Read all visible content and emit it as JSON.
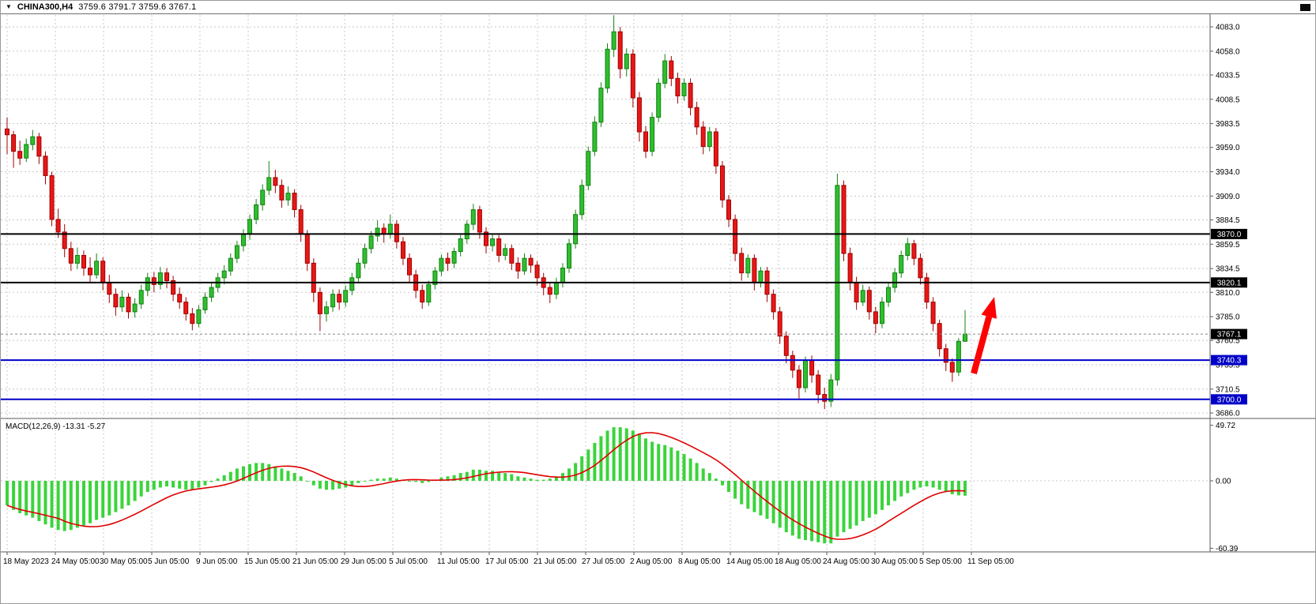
{
  "header": {
    "symbol_period": "CHINA300,H4",
    "ohlc": "3759.6 3791.7 3759.6 3767.1"
  },
  "chart_data": {
    "type": "candlestick",
    "symbol": "CHINA300",
    "timeframe": "H4",
    "title": "CHINA300,H4 3759.6 3791.7 3759.6 3767.1",
    "last_bar": {
      "open": 3759.6,
      "high": 3791.7,
      "low": 3759.6,
      "close": 3767.1
    },
    "ylim": [
      3686.0,
      4083.0
    ],
    "y_ticks": [
      "4083.0",
      "4058.0",
      "4033.5",
      "4008.5",
      "3983.5",
      "3959.0",
      "3934.0",
      "3909.0",
      "3884.5",
      "3859.5",
      "3834.5",
      "3810.0",
      "3785.0",
      "3760.5",
      "3735.5",
      "3710.5",
      "3686.0"
    ],
    "x_labels": [
      "18 May 2023",
      "24 May 05:00",
      "30 May 05:00",
      "5 Jun 05:00",
      "9 Jun 05:00",
      "15 Jun 05:00",
      "21 Jun 05:00",
      "29 Jun 05:00",
      "5 Jul 05:00",
      "11 Jul 05:00",
      "17 Jul 05:00",
      "21 Jul 05:00",
      "27 Jul 05:00",
      "2 Aug 05:00",
      "8 Aug 05:00",
      "14 Aug 05:00",
      "18 Aug 05:00",
      "24 Aug 05:00",
      "30 Aug 05:00",
      "5 Sep 05:00",
      "11 Sep 05:00"
    ],
    "levels": [
      {
        "price": 3870.0,
        "label": "3870.0",
        "color": "#000000",
        "width": 2
      },
      {
        "price": 3820.1,
        "label": "3820.1",
        "color": "#000000",
        "width": 2
      },
      {
        "price": 3740.3,
        "label": "3740.3",
        "color": "#0000C8",
        "width": 2
      },
      {
        "price": 3700.0,
        "label": "3700.0",
        "color": "#0000C8",
        "width": 2
      }
    ],
    "current_price": {
      "price": 3767.1,
      "label": "3767.1"
    },
    "candles": [
      [
        3978,
        3990,
        3952,
        3972
      ],
      [
        3972,
        3976,
        3938,
        3955
      ],
      [
        3955,
        3966,
        3941,
        3948
      ],
      [
        3948,
        3968,
        3944,
        3962
      ],
      [
        3962,
        3977,
        3956,
        3970
      ],
      [
        3970,
        3974,
        3942,
        3950
      ],
      [
        3950,
        3955,
        3921,
        3930
      ],
      [
        3930,
        3934,
        3878,
        3885
      ],
      [
        3885,
        3896,
        3866,
        3872
      ],
      [
        3872,
        3880,
        3846,
        3855
      ],
      [
        3855,
        3862,
        3832,
        3840
      ],
      [
        3840,
        3856,
        3834,
        3848
      ],
      [
        3848,
        3853,
        3827,
        3835
      ],
      [
        3835,
        3846,
        3820,
        3828
      ],
      [
        3828,
        3850,
        3824,
        3842
      ],
      [
        3842,
        3846,
        3812,
        3820
      ],
      [
        3820,
        3828,
        3799,
        3808
      ],
      [
        3808,
        3814,
        3786,
        3795
      ],
      [
        3795,
        3812,
        3790,
        3805
      ],
      [
        3805,
        3809,
        3783,
        3790
      ],
      [
        3790,
        3804,
        3784,
        3798
      ],
      [
        3798,
        3818,
        3793,
        3812
      ],
      [
        3812,
        3830,
        3806,
        3825
      ],
      [
        3825,
        3831,
        3810,
        3818
      ],
      [
        3818,
        3836,
        3813,
        3830
      ],
      [
        3830,
        3835,
        3814,
        3822
      ],
      [
        3822,
        3827,
        3801,
        3808
      ],
      [
        3808,
        3815,
        3793,
        3800
      ],
      [
        3800,
        3805,
        3781,
        3788
      ],
      [
        3788,
        3794,
        3771,
        3778
      ],
      [
        3778,
        3797,
        3774,
        3792
      ],
      [
        3792,
        3810,
        3788,
        3805
      ],
      [
        3805,
        3820,
        3800,
        3815
      ],
      [
        3815,
        3830,
        3810,
        3825
      ],
      [
        3825,
        3838,
        3818,
        3832
      ],
      [
        3832,
        3850,
        3827,
        3845
      ],
      [
        3845,
        3863,
        3840,
        3858
      ],
      [
        3858,
        3875,
        3852,
        3870
      ],
      [
        3870,
        3890,
        3864,
        3885
      ],
      [
        3885,
        3906,
        3880,
        3900
      ],
      [
        3900,
        3921,
        3894,
        3915
      ],
      [
        3915,
        3945,
        3910,
        3928
      ],
      [
        3928,
        3936,
        3912,
        3920
      ],
      [
        3920,
        3926,
        3897,
        3905
      ],
      [
        3905,
        3919,
        3899,
        3912
      ],
      [
        3912,
        3916,
        3887,
        3895
      ],
      [
        3895,
        3900,
        3862,
        3870
      ],
      [
        3870,
        3874,
        3832,
        3840
      ],
      [
        3840,
        3845,
        3800,
        3810
      ],
      [
        3810,
        3815,
        3770,
        3788
      ],
      [
        3788,
        3801,
        3780,
        3795
      ],
      [
        3795,
        3813,
        3790,
        3808
      ],
      [
        3808,
        3813,
        3792,
        3800
      ],
      [
        3800,
        3817,
        3795,
        3812
      ],
      [
        3812,
        3830,
        3807,
        3825
      ],
      [
        3825,
        3845,
        3820,
        3840
      ],
      [
        3840,
        3860,
        3835,
        3855
      ],
      [
        3855,
        3873,
        3850,
        3868
      ],
      [
        3868,
        3884,
        3862,
        3876
      ],
      [
        3876,
        3881,
        3861,
        3870
      ],
      [
        3870,
        3890,
        3865,
        3880
      ],
      [
        3880,
        3884,
        3855,
        3862
      ],
      [
        3862,
        3867,
        3838,
        3845
      ],
      [
        3845,
        3850,
        3820,
        3828
      ],
      [
        3828,
        3833,
        3804,
        3812
      ],
      [
        3812,
        3818,
        3793,
        3800
      ],
      [
        3800,
        3822,
        3796,
        3818
      ],
      [
        3818,
        3836,
        3813,
        3832
      ],
      [
        3832,
        3849,
        3827,
        3845
      ],
      [
        3845,
        3851,
        3832,
        3840
      ],
      [
        3840,
        3856,
        3835,
        3852
      ],
      [
        3852,
        3869,
        3847,
        3865
      ],
      [
        3865,
        3884,
        3860,
        3880
      ],
      [
        3880,
        3901,
        3874,
        3895
      ],
      [
        3895,
        3899,
        3865,
        3872
      ],
      [
        3872,
        3877,
        3850,
        3858
      ],
      [
        3858,
        3870,
        3852,
        3865
      ],
      [
        3865,
        3869,
        3841,
        3848
      ],
      [
        3848,
        3860,
        3843,
        3855
      ],
      [
        3855,
        3859,
        3833,
        3840
      ],
      [
        3840,
        3846,
        3824,
        3832
      ],
      [
        3832,
        3850,
        3828,
        3845
      ],
      [
        3845,
        3849,
        3830,
        3838
      ],
      [
        3838,
        3842,
        3817,
        3825
      ],
      [
        3825,
        3830,
        3807,
        3815
      ],
      [
        3815,
        3820,
        3799,
        3808
      ],
      [
        3808,
        3825,
        3803,
        3820
      ],
      [
        3820,
        3840,
        3815,
        3835
      ],
      [
        3835,
        3865,
        3830,
        3860
      ],
      [
        3860,
        3895,
        3855,
        3890
      ],
      [
        3890,
        3926,
        3885,
        3920
      ],
      [
        3920,
        3960,
        3915,
        3955
      ],
      [
        3955,
        3991,
        3950,
        3985
      ],
      [
        3985,
        4026,
        3980,
        4020
      ],
      [
        4020,
        4066,
        4015,
        4060
      ],
      [
        4060,
        4095,
        4052,
        4078
      ],
      [
        4078,
        4083,
        4030,
        4040
      ],
      [
        4040,
        4061,
        4032,
        4055
      ],
      [
        4055,
        4060,
        4000,
        4010
      ],
      [
        4010,
        4016,
        3965,
        3975
      ],
      [
        3975,
        3981,
        3948,
        3955
      ],
      [
        3955,
        3995,
        3950,
        3990
      ],
      [
        3990,
        4030,
        3985,
        4025
      ],
      [
        4025,
        4055,
        4020,
        4048
      ],
      [
        4048,
        4053,
        4022,
        4030
      ],
      [
        4030,
        4036,
        4004,
        4012
      ],
      [
        4012,
        4030,
        4007,
        4025
      ],
      [
        4025,
        4030,
        3992,
        4000
      ],
      [
        4000,
        4006,
        3972,
        3980
      ],
      [
        3980,
        3986,
        3952,
        3960
      ],
      [
        3960,
        3980,
        3955,
        3975
      ],
      [
        3975,
        3979,
        3932,
        3940
      ],
      [
        3940,
        3945,
        3897,
        3905
      ],
      [
        3905,
        3910,
        3877,
        3885
      ],
      [
        3885,
        3890,
        3842,
        3850
      ],
      [
        3850,
        3856,
        3822,
        3830
      ],
      [
        3830,
        3849,
        3825,
        3845
      ],
      [
        3845,
        3849,
        3812,
        3820
      ],
      [
        3820,
        3836,
        3815,
        3832
      ],
      [
        3832,
        3836,
        3800,
        3808
      ],
      [
        3808,
        3813,
        3782,
        3790
      ],
      [
        3790,
        3795,
        3757,
        3765
      ],
      [
        3765,
        3770,
        3737,
        3745
      ],
      [
        3745,
        3750,
        3722,
        3730
      ],
      [
        3730,
        3735,
        3701,
        3712
      ],
      [
        3712,
        3744,
        3707,
        3740
      ],
      [
        3740,
        3745,
        3717,
        3725
      ],
      [
        3725,
        3730,
        3696,
        3705
      ],
      [
        3705,
        3712,
        3690,
        3698
      ],
      [
        3698,
        3726,
        3692,
        3720
      ],
      [
        3720,
        3932,
        3714,
        3920
      ],
      [
        3920,
        3925,
        3842,
        3850
      ],
      [
        3850,
        3856,
        3812,
        3820
      ],
      [
        3820,
        3826,
        3792,
        3800
      ],
      [
        3800,
        3818,
        3796,
        3812
      ],
      [
        3812,
        3816,
        3782,
        3790
      ],
      [
        3790,
        3795,
        3768,
        3778
      ],
      [
        3778,
        3805,
        3773,
        3800
      ],
      [
        3800,
        3820,
        3795,
        3815
      ],
      [
        3815,
        3835,
        3810,
        3830
      ],
      [
        3830,
        3853,
        3825,
        3848
      ],
      [
        3848,
        3866,
        3843,
        3860
      ],
      [
        3860,
        3864,
        3838,
        3845
      ],
      [
        3845,
        3850,
        3818,
        3825
      ],
      [
        3825,
        3830,
        3793,
        3800
      ],
      [
        3800,
        3805,
        3770,
        3778
      ],
      [
        3778,
        3782,
        3744,
        3752
      ],
      [
        3752,
        3757,
        3729,
        3738
      ],
      [
        3738,
        3742,
        3718,
        3728
      ],
      [
        3728,
        3763,
        3724,
        3759.6
      ],
      [
        3759.6,
        3791.7,
        3759.6,
        3767.1
      ]
    ],
    "macd": {
      "label": "MACD(12,26,9)",
      "main_value": "-13.31",
      "signal_value": "-5.27",
      "ticks": [
        "49.72",
        "0.00",
        "-60.39"
      ],
      "ylim": [
        -60.39,
        49.72
      ],
      "signal_period": 9,
      "histogram": [
        -22,
        -26,
        -29,
        -31,
        -33,
        -36,
        -39,
        -42,
        -44,
        -45,
        -44,
        -42,
        -40,
        -38,
        -35,
        -33,
        -31,
        -28,
        -25,
        -22,
        -18,
        -14,
        -10,
        -8,
        -6,
        -5,
        -6,
        -7,
        -8,
        -8,
        -6,
        -4,
        -1,
        2,
        5,
        8,
        11,
        13,
        15,
        16,
        16,
        15,
        13,
        11,
        9,
        7,
        4,
        0,
        -4,
        -7,
        -8,
        -8,
        -7,
        -6,
        -4,
        -2,
        0,
        1,
        2,
        2,
        3,
        2,
        1,
        0,
        -1,
        -2,
        -1,
        1,
        3,
        4,
        5,
        7,
        8,
        10,
        10,
        9,
        9,
        8,
        7,
        6,
        4,
        3,
        2,
        1,
        1,
        2,
        4,
        7,
        11,
        16,
        22,
        28,
        34,
        40,
        45,
        48,
        48,
        47,
        45,
        42,
        38,
        35,
        33,
        32,
        30,
        27,
        24,
        20,
        16,
        11,
        7,
        2,
        -4,
        -10,
        -16,
        -21,
        -25,
        -28,
        -31,
        -34,
        -38,
        -42,
        -46,
        -49,
        -52,
        -53,
        -54,
        -55,
        -56,
        -56,
        -50,
        -46,
        -43,
        -40,
        -36,
        -33,
        -30,
        -26,
        -22,
        -18,
        -14,
        -11,
        -8,
        -6,
        -5,
        -6,
        -8,
        -10,
        -12,
        -13,
        -13.31
      ]
    },
    "annotation": {
      "type": "arrow-up",
      "color": "#FF0000"
    },
    "colors": {
      "up": "#2FBE2F",
      "up_dark": "#128212",
      "down": "#E81717",
      "down_dark": "#A00000",
      "hist": "#3BD43B",
      "signal": "#E00000",
      "grid": "#C8C8C8",
      "axis": "#5A5A5A",
      "level_blue": "#0000C8",
      "current_box": "#000000"
    }
  }
}
